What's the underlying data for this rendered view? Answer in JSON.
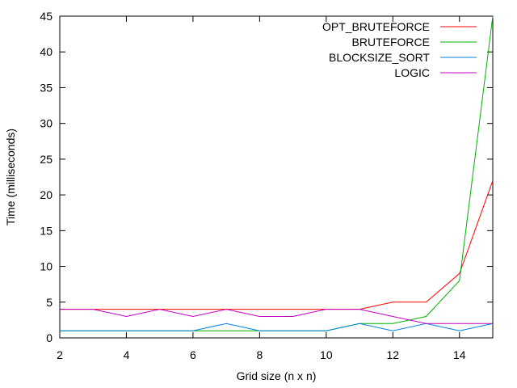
{
  "chart_data": {
    "type": "line",
    "title": "",
    "xlabel": "Grid size (n x n)",
    "ylabel": "Time (milliseconds)",
    "xlim": [
      2,
      15
    ],
    "ylim": [
      0,
      45
    ],
    "x_ticks": [
      2,
      4,
      6,
      8,
      10,
      12,
      14
    ],
    "y_ticks": [
      0,
      5,
      10,
      15,
      20,
      25,
      30,
      35,
      40,
      45
    ],
    "grid": false,
    "legend_position": "top-right",
    "x": [
      2,
      3,
      4,
      5,
      6,
      7,
      8,
      9,
      10,
      11,
      12,
      13,
      14,
      15
    ],
    "series": [
      {
        "name": "OPT_BRUTEFORCE",
        "color": "#ff0000",
        "values": [
          4,
          4,
          4,
          4,
          4,
          4,
          4,
          4,
          4,
          4,
          5,
          5,
          9,
          22
        ]
      },
      {
        "name": "BRUTEFORCE",
        "color": "#00b000",
        "values": [
          1,
          1,
          1,
          1,
          1,
          1,
          1,
          1,
          1,
          2,
          2,
          3,
          8,
          45
        ]
      },
      {
        "name": "BLOCKSIZE_SORT",
        "color": "#0080e0",
        "values": [
          1,
          1,
          1,
          1,
          1,
          2,
          1,
          1,
          1,
          2,
          1,
          2,
          1,
          2
        ]
      },
      {
        "name": "LOGIC",
        "color": "#c000c0",
        "values": [
          4,
          4,
          3,
          4,
          3,
          4,
          3,
          3,
          4,
          4,
          3,
          2,
          2,
          2
        ]
      }
    ]
  }
}
